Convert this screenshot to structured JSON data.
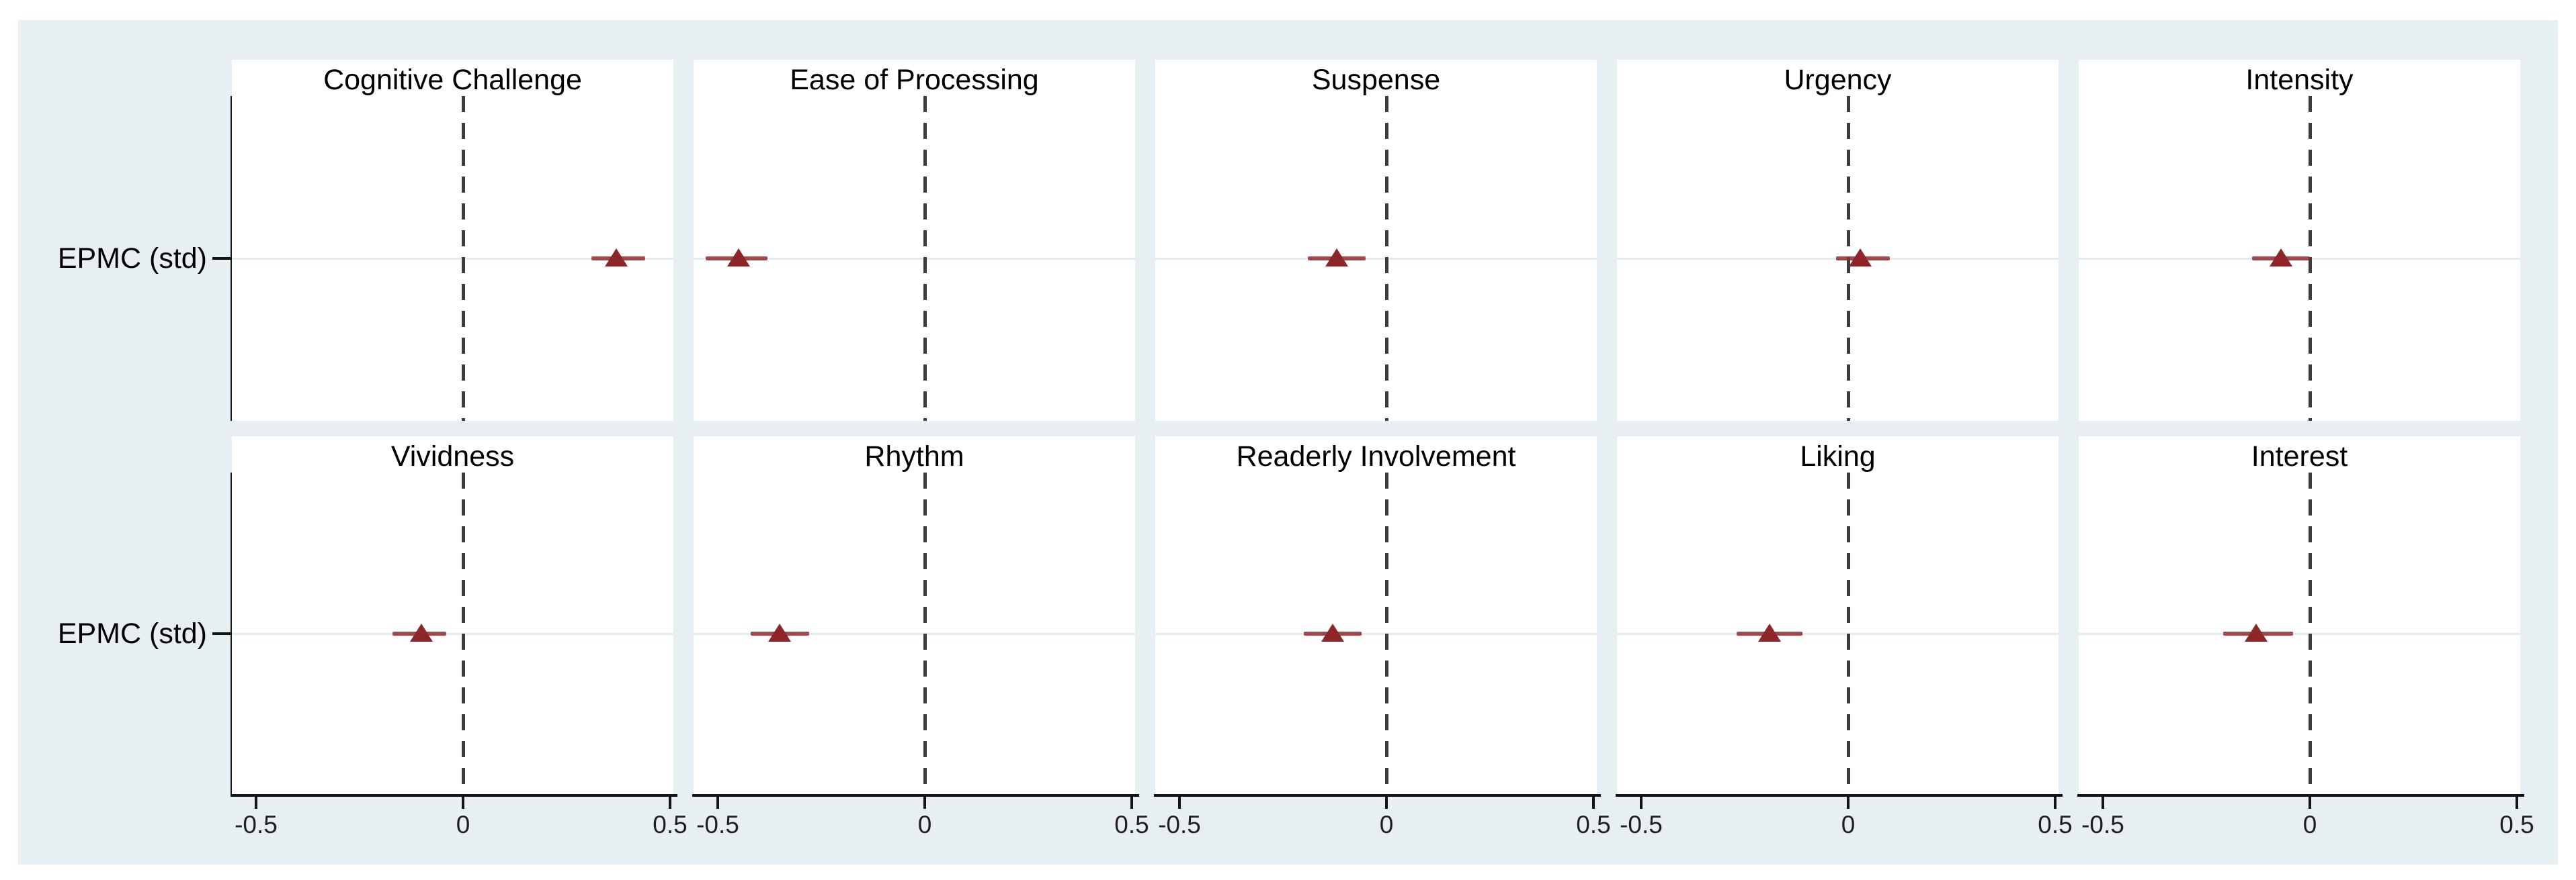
{
  "figure": {
    "row_label": "EPMC (std)",
    "x_tick_labels": [
      "-0.5",
      "0",
      "0.5"
    ]
  },
  "chart_data": {
    "type": "scatter",
    "subtype": "coefficient plot (point estimate with confidence interval), 2x5 small multiples",
    "y_category": "EPMC (std)",
    "xlim": [
      -0.56,
      0.51
    ],
    "x_ticks": [
      -0.5,
      0,
      0.5
    ],
    "reference_line_x": 0,
    "marker_shape": "triangle-up",
    "legend": "none",
    "grid": "single horizontal gridline per category row",
    "colors": {
      "marker": "#942b2f",
      "figure_background": "#e8eff2",
      "panel_background": "#ffffff",
      "reference_line": "#3d3d3d",
      "axis": "#141414",
      "gridline": "#e2ecee"
    },
    "panels": [
      {
        "title": "Cognitive Challenge",
        "estimate": 0.37,
        "ci_low": 0.31,
        "ci_high": 0.44
      },
      {
        "title": "Ease of Processing",
        "estimate": -0.45,
        "ci_low": -0.53,
        "ci_high": -0.38
      },
      {
        "title": "Suspense",
        "estimate": -0.12,
        "ci_low": -0.19,
        "ci_high": -0.05
      },
      {
        "title": "Urgency",
        "estimate": 0.03,
        "ci_low": -0.03,
        "ci_high": 0.1
      },
      {
        "title": "Intensity",
        "estimate": -0.07,
        "ci_low": -0.14,
        "ci_high": 0.0
      },
      {
        "title": "Vividness",
        "estimate": -0.1,
        "ci_low": -0.17,
        "ci_high": -0.04
      },
      {
        "title": "Rhythm",
        "estimate": -0.35,
        "ci_low": -0.42,
        "ci_high": -0.28
      },
      {
        "title": "Readerly Involvement",
        "estimate": -0.13,
        "ci_low": -0.2,
        "ci_high": -0.06
      },
      {
        "title": "Liking",
        "estimate": -0.19,
        "ci_low": -0.27,
        "ci_high": -0.11
      },
      {
        "title": "Interest",
        "estimate": -0.13,
        "ci_low": -0.21,
        "ci_high": -0.04
      }
    ]
  }
}
